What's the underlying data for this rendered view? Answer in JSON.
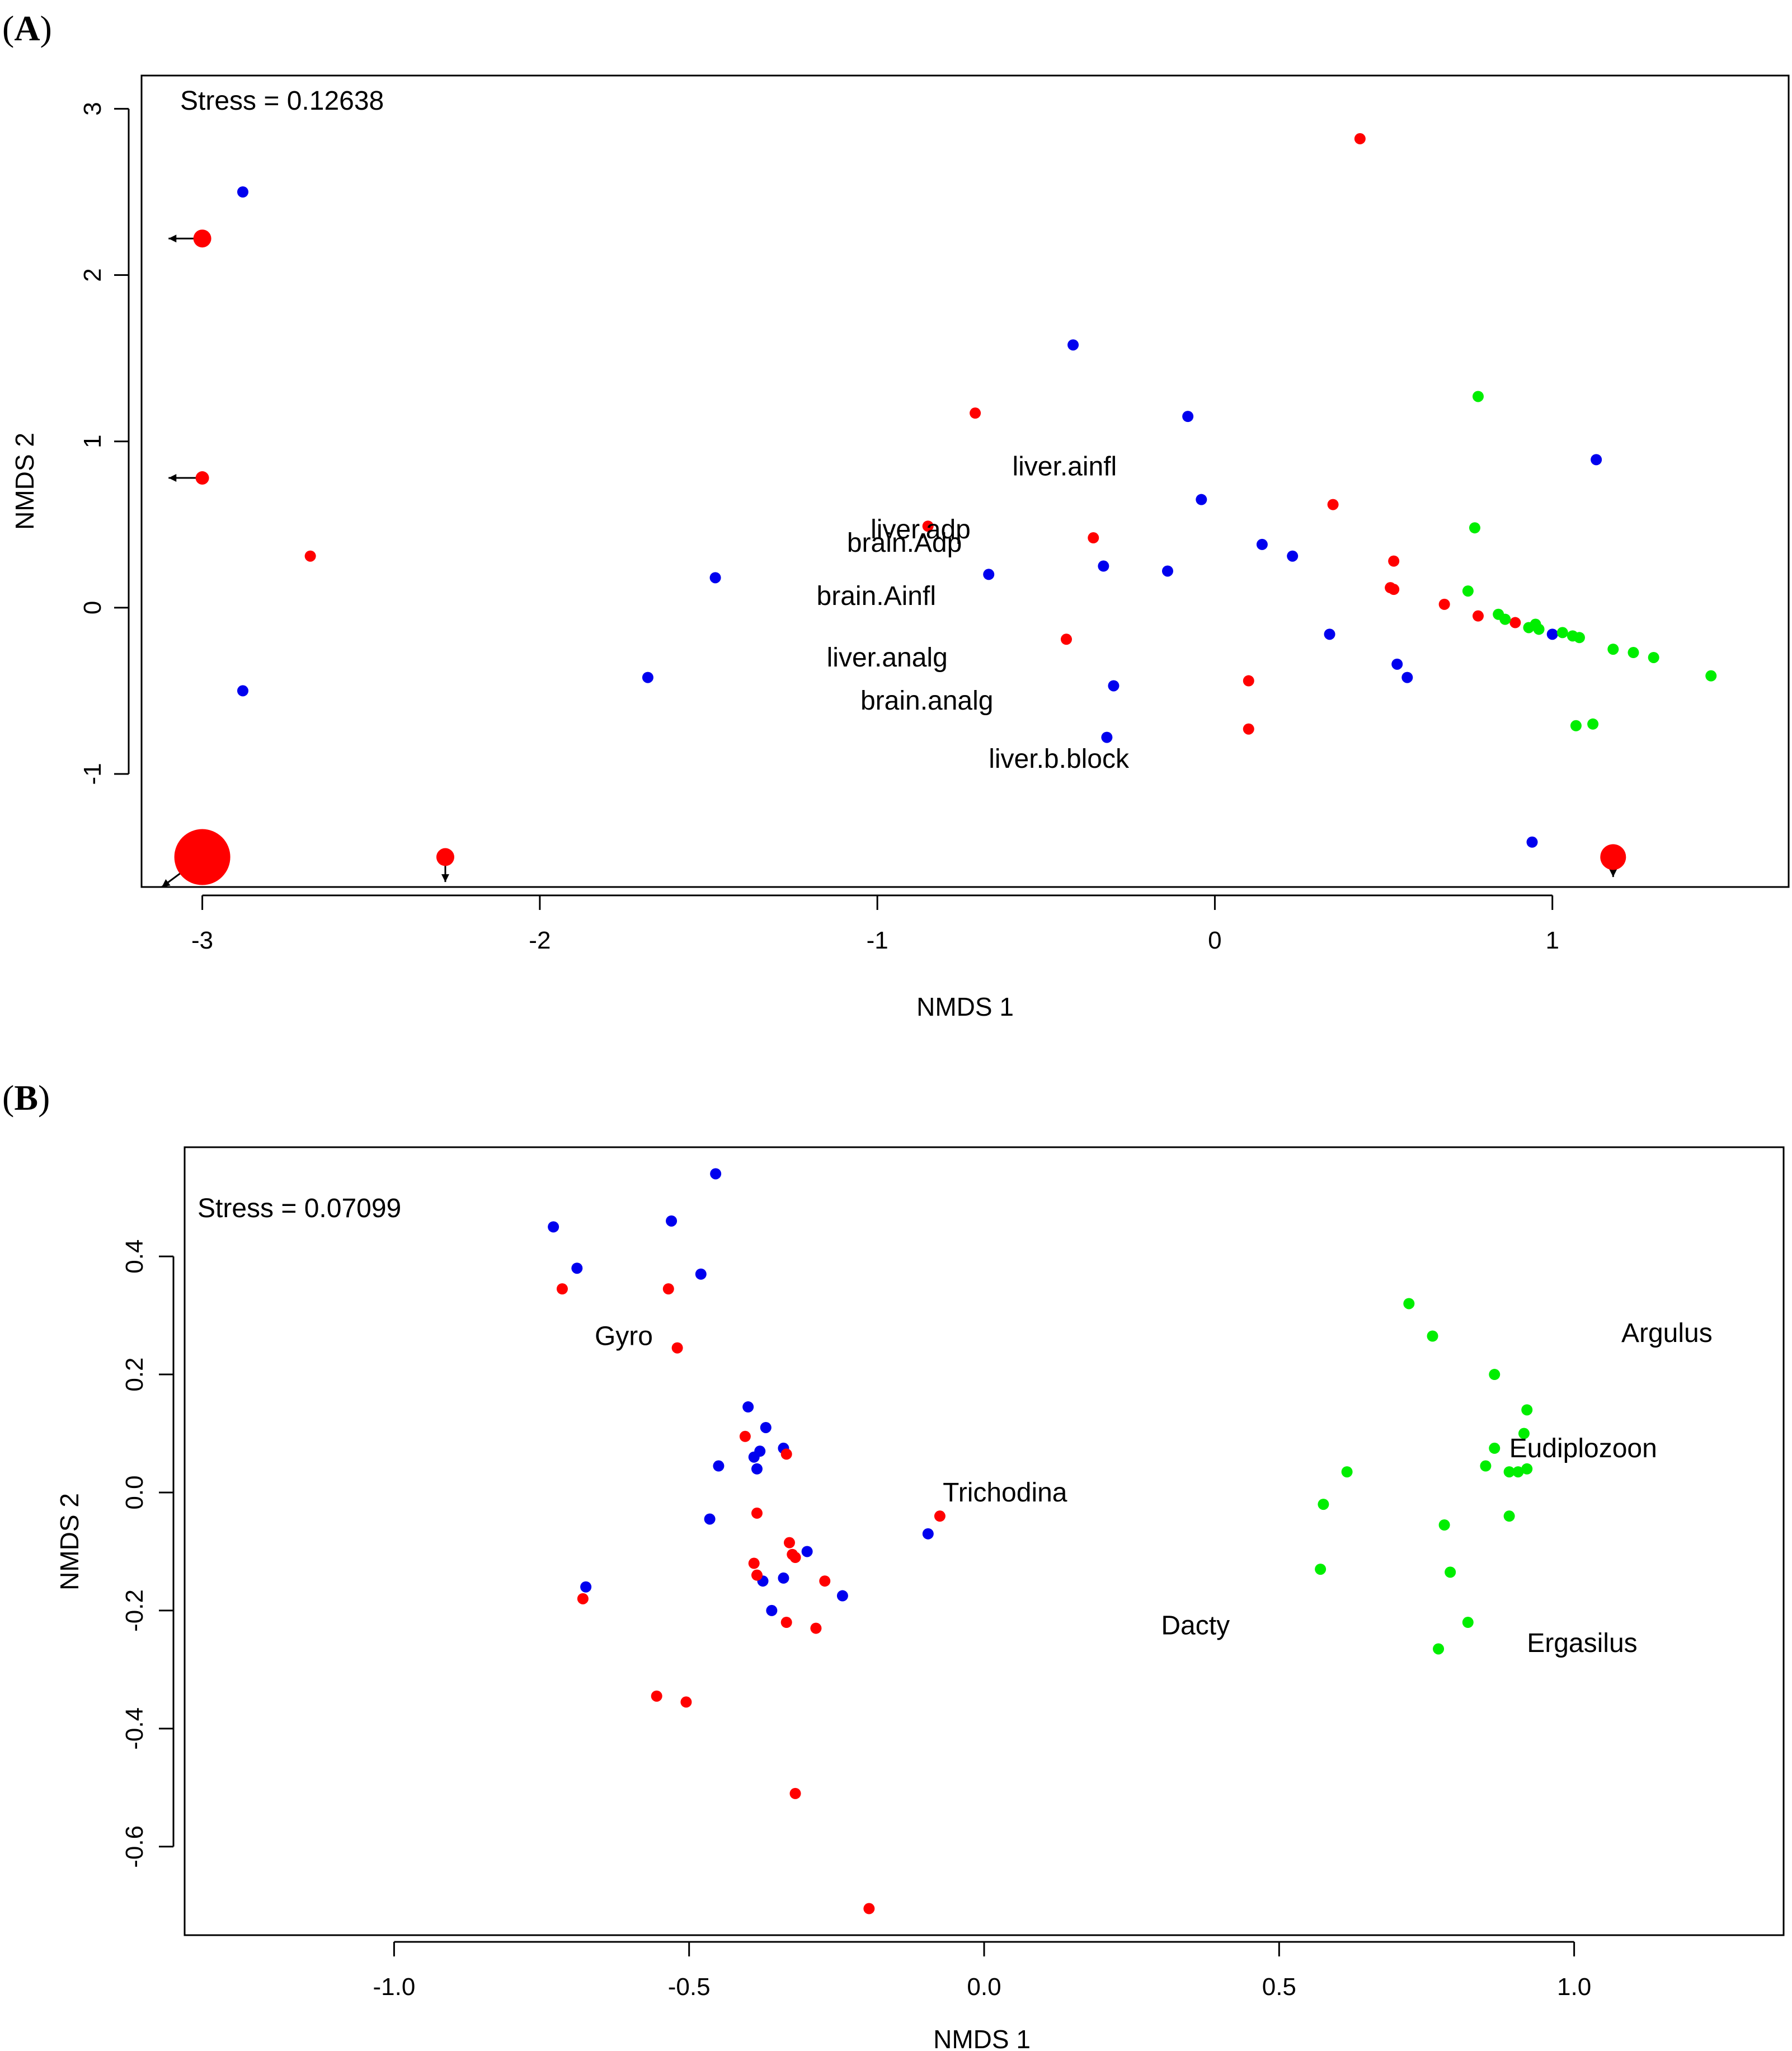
{
  "chart_data": [
    {
      "panel_label": "A",
      "type": "scatter",
      "title": "",
      "xlabel": "NMDS 1",
      "ylabel": "NMDS 2",
      "xlim": [
        -3.18,
        1.7
      ],
      "ylim": [
        -1.68,
        3.2
      ],
      "xticks": [
        -3,
        -2,
        -1,
        0,
        1
      ],
      "xtick_labels": [
        "-3",
        "-2",
        "-1",
        "0",
        "1"
      ],
      "yticks": [
        -1,
        0,
        1,
        2,
        3
      ],
      "ytick_labels": [
        "-1",
        "0",
        "1",
        "2",
        "3"
      ],
      "annotation": "Stress = 0.12638",
      "colors": {
        "red": "#ff0000",
        "blue": "#0000ee",
        "green": "#00ee00"
      },
      "points": [
        {
          "x": -2.88,
          "y": 2.5,
          "color": "blue"
        },
        {
          "x": -2.88,
          "y": -0.5,
          "color": "blue"
        },
        {
          "x": -1.68,
          "y": -0.42,
          "color": "blue"
        },
        {
          "x": -1.48,
          "y": 0.18,
          "color": "blue"
        },
        {
          "x": -0.67,
          "y": 0.2,
          "color": "blue"
        },
        {
          "x": -0.42,
          "y": 1.58,
          "color": "blue"
        },
        {
          "x": -0.33,
          "y": 0.25,
          "color": "blue"
        },
        {
          "x": -0.3,
          "y": -0.47,
          "color": "blue"
        },
        {
          "x": -0.32,
          "y": -0.78,
          "color": "blue"
        },
        {
          "x": -0.14,
          "y": 0.22,
          "color": "blue"
        },
        {
          "x": -0.08,
          "y": 1.15,
          "color": "blue"
        },
        {
          "x": -0.04,
          "y": 0.65,
          "color": "blue"
        },
        {
          "x": 0.14,
          "y": 0.38,
          "color": "blue"
        },
        {
          "x": 0.23,
          "y": 0.31,
          "color": "blue"
        },
        {
          "x": 0.34,
          "y": -0.16,
          "color": "blue"
        },
        {
          "x": 0.54,
          "y": -0.34,
          "color": "blue"
        },
        {
          "x": 0.57,
          "y": -0.42,
          "color": "blue"
        },
        {
          "x": 0.94,
          "y": -1.41,
          "color": "blue"
        },
        {
          "x": 1.0,
          "y": -0.16,
          "color": "blue"
        },
        {
          "x": 1.13,
          "y": 0.89,
          "color": "blue"
        },
        {
          "x": -3.0,
          "y": 2.22,
          "color": "red",
          "size": 1.6,
          "arrow": [
            -0.1,
            0.0
          ]
        },
        {
          "x": -3.0,
          "y": 0.78,
          "color": "red",
          "size": 1.2,
          "arrow": [
            -0.1,
            0.0
          ]
        },
        {
          "x": -3.0,
          "y": -1.5,
          "color": "red",
          "size": 5,
          "arrow": [
            -0.12,
            -0.18
          ]
        },
        {
          "x": -2.28,
          "y": -1.5,
          "color": "red",
          "size": 1.6,
          "arrow": [
            0.0,
            -0.15
          ]
        },
        {
          "x": 1.18,
          "y": -1.5,
          "color": "red",
          "size": 2.3,
          "arrow": [
            0.0,
            -0.12
          ]
        },
        {
          "x": -2.68,
          "y": 0.31,
          "color": "red"
        },
        {
          "x": -0.85,
          "y": 0.49,
          "color": "red"
        },
        {
          "x": -0.71,
          "y": 1.17,
          "color": "red"
        },
        {
          "x": -0.44,
          "y": -0.19,
          "color": "red"
        },
        {
          "x": -0.36,
          "y": 0.42,
          "color": "red"
        },
        {
          "x": 0.1,
          "y": -0.44,
          "color": "red"
        },
        {
          "x": 0.1,
          "y": -0.73,
          "color": "red"
        },
        {
          "x": 0.35,
          "y": 0.62,
          "color": "red"
        },
        {
          "x": 0.43,
          "y": 2.82,
          "color": "red"
        },
        {
          "x": 0.52,
          "y": 0.12,
          "color": "red"
        },
        {
          "x": 0.53,
          "y": 0.28,
          "color": "red"
        },
        {
          "x": 0.53,
          "y": 0.11,
          "color": "red"
        },
        {
          "x": 0.68,
          "y": 0.02,
          "color": "red"
        },
        {
          "x": 0.78,
          "y": -0.05,
          "color": "red"
        },
        {
          "x": 0.89,
          "y": -0.09,
          "color": "red"
        },
        {
          "x": 0.75,
          "y": 0.1,
          "color": "green"
        },
        {
          "x": 0.77,
          "y": 0.48,
          "color": "green"
        },
        {
          "x": 0.78,
          "y": 1.27,
          "color": "green"
        },
        {
          "x": 0.84,
          "y": -0.04,
          "color": "green"
        },
        {
          "x": 0.86,
          "y": -0.07,
          "color": "green"
        },
        {
          "x": 0.93,
          "y": -0.12,
          "color": "green"
        },
        {
          "x": 0.95,
          "y": -0.1,
          "color": "green"
        },
        {
          "x": 0.96,
          "y": -0.13,
          "color": "green"
        },
        {
          "x": 1.03,
          "y": -0.15,
          "color": "green"
        },
        {
          "x": 1.06,
          "y": -0.17,
          "color": "green"
        },
        {
          "x": 1.08,
          "y": -0.18,
          "color": "green"
        },
        {
          "x": 1.07,
          "y": -0.71,
          "color": "green"
        },
        {
          "x": 1.12,
          "y": -0.7,
          "color": "green"
        },
        {
          "x": 1.18,
          "y": -0.25,
          "color": "green"
        },
        {
          "x": 1.24,
          "y": -0.27,
          "color": "green"
        },
        {
          "x": 1.3,
          "y": -0.3,
          "color": "green"
        },
        {
          "x": 1.47,
          "y": -0.41,
          "color": "green"
        }
      ],
      "labels": [
        {
          "text": "liver.ainfl",
          "x": -0.6,
          "y": 0.85
        },
        {
          "text": "liver.adp",
          "x": -1.02,
          "y": 0.47
        },
        {
          "text": "brain.Adp",
          "x": -1.09,
          "y": 0.39
        },
        {
          "text": "brain.Ainfl",
          "x": -1.18,
          "y": 0.07
        },
        {
          "text": "liver.analg",
          "x": -1.15,
          "y": -0.3
        },
        {
          "text": "brain.analg",
          "x": -1.05,
          "y": -0.56
        },
        {
          "text": "liver.b.block",
          "x": -0.67,
          "y": -0.91
        }
      ]
    },
    {
      "panel_label": "B",
      "type": "scatter",
      "title": "",
      "xlabel": "NMDS 1",
      "ylabel": "NMDS 2",
      "xlim": [
        -1.355,
        1.355
      ],
      "ylim": [
        -0.75,
        0.585
      ],
      "xticks": [
        -1.0,
        -0.5,
        0.0,
        0.5,
        1.0
      ],
      "xtick_labels": [
        "-1.0",
        "-0.5",
        "0.0",
        "0.5",
        "1.0"
      ],
      "yticks": [
        -0.6,
        -0.4,
        -0.2,
        0.0,
        0.2,
        0.4
      ],
      "ytick_labels": [
        "-0.6",
        "-0.4",
        "-0.2",
        "0.0",
        "0.2",
        "0.4"
      ],
      "annotation": "Stress = 0.07099",
      "colors": {
        "red": "#ff0000",
        "blue": "#0000ee",
        "green": "#00ee00"
      },
      "points": [
        {
          "x": -0.73,
          "y": 0.45,
          "color": "blue"
        },
        {
          "x": -0.69,
          "y": 0.38,
          "color": "blue"
        },
        {
          "x": -0.53,
          "y": 0.46,
          "color": "blue"
        },
        {
          "x": -0.48,
          "y": 0.37,
          "color": "blue"
        },
        {
          "x": -0.455,
          "y": 0.54,
          "color": "blue"
        },
        {
          "x": -0.45,
          "y": 0.045,
          "color": "blue"
        },
        {
          "x": -0.465,
          "y": -0.045,
          "color": "blue"
        },
        {
          "x": -0.4,
          "y": 0.145,
          "color": "blue"
        },
        {
          "x": -0.37,
          "y": 0.11,
          "color": "blue"
        },
        {
          "x": -0.38,
          "y": 0.07,
          "color": "blue"
        },
        {
          "x": -0.39,
          "y": 0.06,
          "color": "blue"
        },
        {
          "x": -0.385,
          "y": 0.04,
          "color": "blue"
        },
        {
          "x": -0.34,
          "y": 0.075,
          "color": "blue"
        },
        {
          "x": -0.375,
          "y": -0.15,
          "color": "blue"
        },
        {
          "x": -0.34,
          "y": -0.145,
          "color": "blue"
        },
        {
          "x": -0.36,
          "y": -0.2,
          "color": "blue"
        },
        {
          "x": -0.3,
          "y": -0.1,
          "color": "blue"
        },
        {
          "x": -0.24,
          "y": -0.175,
          "color": "blue"
        },
        {
          "x": -0.675,
          "y": -0.16,
          "color": "blue"
        },
        {
          "x": -0.095,
          "y": -0.07,
          "color": "blue"
        },
        {
          "x": -0.715,
          "y": 0.345,
          "color": "red"
        },
        {
          "x": -0.535,
          "y": 0.345,
          "color": "red"
        },
        {
          "x": -0.52,
          "y": 0.245,
          "color": "red"
        },
        {
          "x": -0.405,
          "y": 0.095,
          "color": "red"
        },
        {
          "x": -0.335,
          "y": 0.065,
          "color": "red"
        },
        {
          "x": -0.385,
          "y": -0.035,
          "color": "red"
        },
        {
          "x": -0.33,
          "y": -0.085,
          "color": "red"
        },
        {
          "x": -0.325,
          "y": -0.105,
          "color": "red"
        },
        {
          "x": -0.32,
          "y": -0.11,
          "color": "red"
        },
        {
          "x": -0.39,
          "y": -0.12,
          "color": "red"
        },
        {
          "x": -0.385,
          "y": -0.14,
          "color": "red"
        },
        {
          "x": -0.27,
          "y": -0.15,
          "color": "red"
        },
        {
          "x": -0.335,
          "y": -0.22,
          "color": "red"
        },
        {
          "x": -0.285,
          "y": -0.23,
          "color": "red"
        },
        {
          "x": -0.68,
          "y": -0.18,
          "color": "red"
        },
        {
          "x": -0.555,
          "y": -0.345,
          "color": "red"
        },
        {
          "x": -0.505,
          "y": -0.355,
          "color": "red"
        },
        {
          "x": -0.32,
          "y": -0.51,
          "color": "red"
        },
        {
          "x": -0.195,
          "y": -0.705,
          "color": "red"
        },
        {
          "x": -0.075,
          "y": -0.04,
          "color": "red"
        },
        {
          "x": 0.72,
          "y": 0.32,
          "color": "green"
        },
        {
          "x": 0.76,
          "y": 0.265,
          "color": "green"
        },
        {
          "x": 0.865,
          "y": 0.2,
          "color": "green"
        },
        {
          "x": 0.92,
          "y": 0.14,
          "color": "green"
        },
        {
          "x": 0.915,
          "y": 0.1,
          "color": "green"
        },
        {
          "x": 0.865,
          "y": 0.075,
          "color": "green"
        },
        {
          "x": 0.85,
          "y": 0.045,
          "color": "green"
        },
        {
          "x": 0.89,
          "y": 0.035,
          "color": "green"
        },
        {
          "x": 0.905,
          "y": 0.035,
          "color": "green"
        },
        {
          "x": 0.92,
          "y": 0.04,
          "color": "green"
        },
        {
          "x": 0.615,
          "y": 0.035,
          "color": "green"
        },
        {
          "x": 0.575,
          "y": -0.02,
          "color": "green"
        },
        {
          "x": 0.89,
          "y": -0.04,
          "color": "green"
        },
        {
          "x": 0.78,
          "y": -0.055,
          "color": "green"
        },
        {
          "x": 0.57,
          "y": -0.13,
          "color": "green"
        },
        {
          "x": 0.79,
          "y": -0.135,
          "color": "green"
        },
        {
          "x": 0.82,
          "y": -0.22,
          "color": "green"
        },
        {
          "x": 0.77,
          "y": -0.265,
          "color": "green"
        }
      ],
      "labels": [
        {
          "text": "Gyro",
          "x": -0.66,
          "y": 0.265
        },
        {
          "text": "Trichodina",
          "x": -0.07,
          "y": 0.0
        },
        {
          "text": "Dacty",
          "x": 0.3,
          "y": -0.225
        },
        {
          "text": "Argulus",
          "x": 1.08,
          "y": 0.27
        },
        {
          "text": "Eudiplozoon",
          "x": 0.89,
          "y": 0.075
        },
        {
          "text": "Ergasilus",
          "x": 0.92,
          "y": -0.255
        }
      ]
    }
  ]
}
